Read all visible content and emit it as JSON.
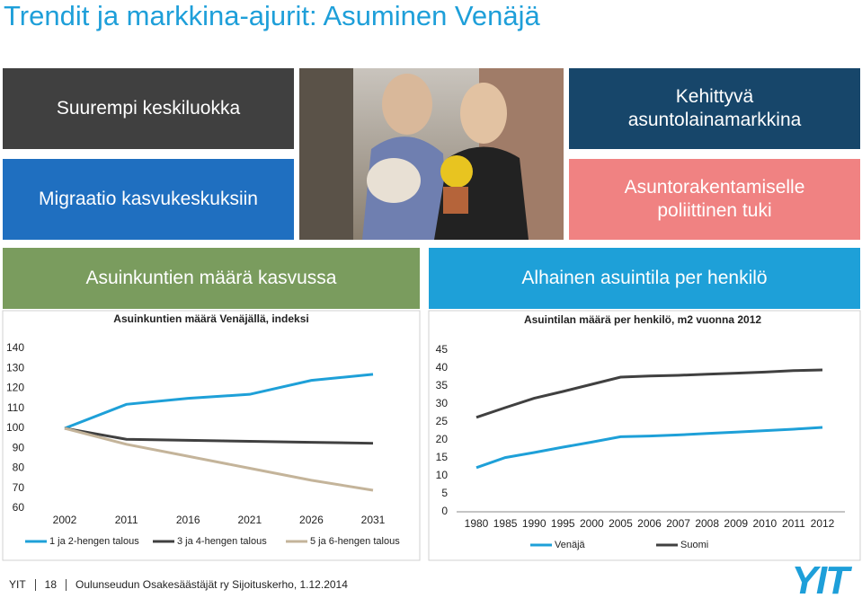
{
  "title": "Trendit ja markkina-ajurit: Asuminen Venäjä",
  "boxes": [
    "Suurempi keskiluokka",
    "Migraatio kasvukeskuksiin",
    "Kehittyvä asuntolainamarkkina",
    "Asuntorakentamiselle poliittinen tuki",
    "Asuinkuntien määrä kasvussa",
    "Alhainen asuintila per henkilö"
  ],
  "footer": {
    "company": "YIT",
    "page": "18",
    "event": "Oulunseudun Osakesäästäjät ry Sijoituskerho, 1.12.2014"
  },
  "logo": "YIT",
  "chart_data": [
    {
      "type": "line",
      "title": "Asuinkuntien määrä Venäjällä, indeksi",
      "categories": [
        "2002",
        "2011",
        "2016",
        "2021",
        "2026",
        "2031"
      ],
      "series": [
        {
          "name": "1 ja 2-hengen talous",
          "color": "#1ea0d8",
          "values": [
            100,
            112,
            115,
            117,
            124,
            127
          ]
        },
        {
          "name": "3 ja 4-hengen talous",
          "color": "#404040",
          "values": [
            100,
            94.5,
            94,
            93.5,
            93,
            92.5
          ]
        },
        {
          "name": "5 ja 6-hengen talous",
          "color": "#c4b49a",
          "values": [
            100,
            92,
            86,
            80,
            74,
            69
          ]
        }
      ],
      "ylim": [
        60,
        140
      ],
      "yticks": [
        60,
        70,
        80,
        90,
        100,
        110,
        120,
        130,
        140
      ],
      "legend": "bottom"
    },
    {
      "type": "line",
      "title": "Asuintilan määrä per henkilö, m2 vuonna 2012",
      "categories": [
        "1980",
        "1985",
        "1990",
        "1995",
        "2000",
        "2005",
        "2006",
        "2007",
        "2008",
        "2009",
        "2010",
        "2011",
        "2012"
      ],
      "series": [
        {
          "name": "Venäjä",
          "color": "#1ea0d8",
          "values": [
            12.3,
            15.1,
            16.5,
            18,
            19.4,
            20.9,
            21.1,
            21.4,
            21.8,
            22.2,
            22.6,
            23,
            23.5
          ]
        },
        {
          "name": "Suomi",
          "color": "#404040",
          "values": [
            26.3,
            29,
            31.6,
            33.5,
            35.5,
            37.5,
            37.8,
            38,
            38.3,
            38.6,
            38.9,
            39.3,
            39.5
          ]
        }
      ],
      "ylim": [
        0,
        45
      ],
      "yticks": [
        0,
        5,
        10,
        15,
        20,
        25,
        30,
        35,
        40,
        45
      ],
      "legend": "bottom"
    }
  ]
}
